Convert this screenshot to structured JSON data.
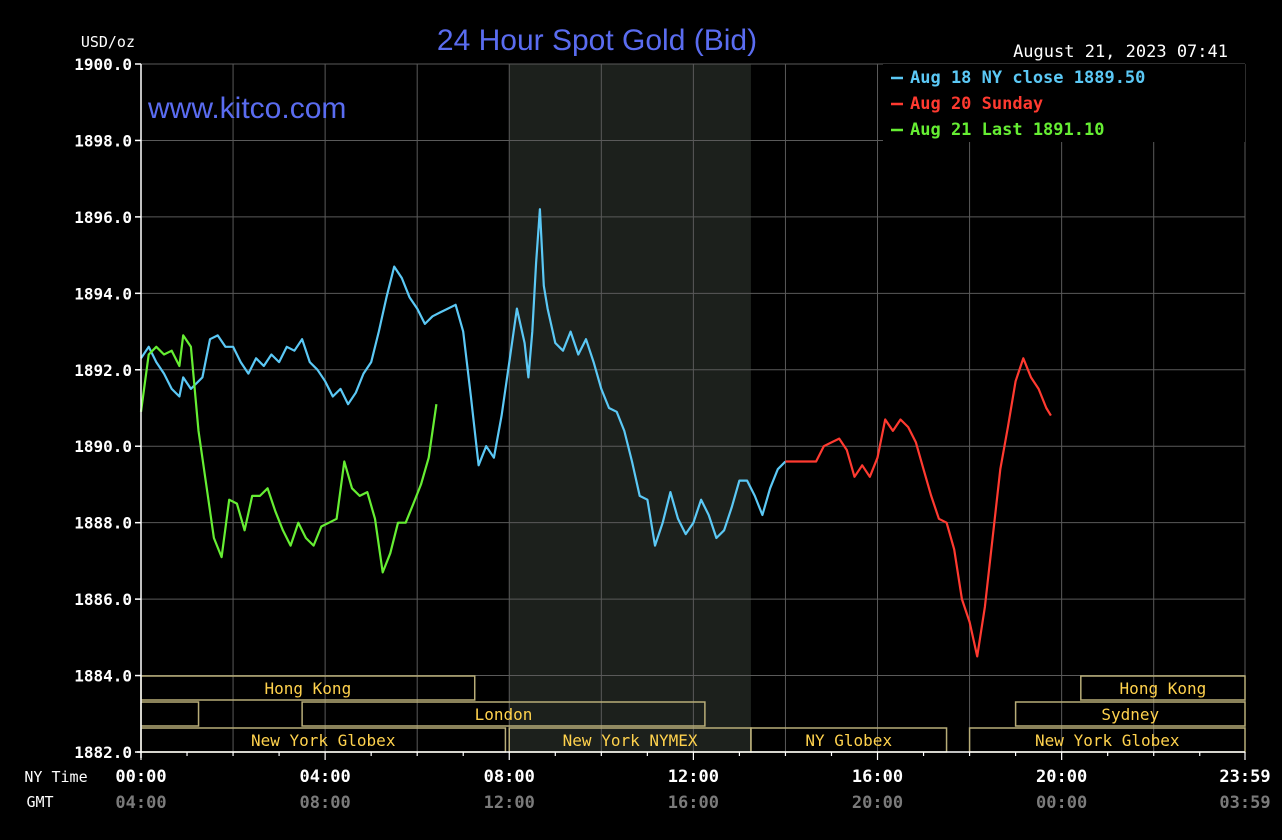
{
  "chart_data": {
    "type": "line",
    "title": "24 Hour Spot Gold (Bid)",
    "website": "www.kitco.com",
    "timestamp": "August 21, 2023 07:41",
    "ylabel": "USD/oz",
    "ylim": [
      1882.0,
      1900.0
    ],
    "ytick_values": [
      1882,
      1884,
      1886,
      1888,
      1890,
      1892,
      1894,
      1896,
      1898,
      1900
    ],
    "ytick_labels": [
      "1882.0",
      "1884.0",
      "1886.0",
      "1888.0",
      "1890.0",
      "1892.0",
      "1894.0",
      "1896.0",
      "1898.0",
      "1900.0"
    ],
    "xlim_minutes": [
      0,
      1439
    ],
    "ny_time_label": "NY Time",
    "gmt_label": "GMT",
    "xtick_minutes": [
      0,
      240,
      480,
      720,
      960,
      1200,
      1439
    ],
    "xtick_ny": [
      "00:00",
      "04:00",
      "08:00",
      "12:00",
      "16:00",
      "20:00",
      "23:59"
    ],
    "xtick_gmt": [
      "04:00",
      "08:00",
      "12:00",
      "16:00",
      "20:00",
      "00:00",
      "03:59"
    ],
    "shade_minutes": [
      480,
      795
    ],
    "legend_placement": "top-right",
    "grid": true,
    "colors": {
      "background": "#000000",
      "grid": "#5a5a5a",
      "session_box": "#b8ad78",
      "session_text": "#ffd24d",
      "title": "#5a6cf0",
      "axis_text": "#ffffff"
    },
    "series": [
      {
        "name": "Aug 18 NY close 1889.50",
        "color": "#5bc8f5",
        "points": [
          [
            0,
            1892.3
          ],
          [
            10,
            1892.6
          ],
          [
            20,
            1892.2
          ],
          [
            30,
            1891.9
          ],
          [
            40,
            1891.5
          ],
          [
            50,
            1891.3
          ],
          [
            55,
            1891.8
          ],
          [
            65,
            1891.5
          ],
          [
            80,
            1891.8
          ],
          [
            90,
            1892.8
          ],
          [
            100,
            1892.9
          ],
          [
            110,
            1892.6
          ],
          [
            120,
            1892.6
          ],
          [
            130,
            1892.2
          ],
          [
            140,
            1891.9
          ],
          [
            150,
            1892.3
          ],
          [
            160,
            1892.1
          ],
          [
            170,
            1892.4
          ],
          [
            180,
            1892.2
          ],
          [
            190,
            1892.6
          ],
          [
            200,
            1892.5
          ],
          [
            210,
            1892.8
          ],
          [
            220,
            1892.2
          ],
          [
            230,
            1892.0
          ],
          [
            240,
            1891.7
          ],
          [
            250,
            1891.3
          ],
          [
            260,
            1891.5
          ],
          [
            270,
            1891.1
          ],
          [
            280,
            1891.4
          ],
          [
            290,
            1891.9
          ],
          [
            300,
            1892.2
          ],
          [
            310,
            1893.0
          ],
          [
            320,
            1893.9
          ],
          [
            330,
            1894.7
          ],
          [
            340,
            1894.4
          ],
          [
            350,
            1893.9
          ],
          [
            360,
            1893.6
          ],
          [
            370,
            1893.2
          ],
          [
            380,
            1893.4
          ],
          [
            390,
            1893.5
          ],
          [
            400,
            1893.6
          ],
          [
            410,
            1893.7
          ],
          [
            420,
            1893.0
          ],
          [
            430,
            1891.3
          ],
          [
            440,
            1889.5
          ],
          [
            450,
            1890.0
          ],
          [
            460,
            1889.7
          ],
          [
            470,
            1890.8
          ],
          [
            480,
            1892.2
          ],
          [
            490,
            1893.6
          ],
          [
            500,
            1892.7
          ],
          [
            505,
            1891.8
          ],
          [
            510,
            1893.0
          ],
          [
            515,
            1894.8
          ],
          [
            520,
            1896.2
          ],
          [
            525,
            1894.2
          ],
          [
            530,
            1893.6
          ],
          [
            540,
            1892.7
          ],
          [
            550,
            1892.5
          ],
          [
            560,
            1893.0
          ],
          [
            570,
            1892.4
          ],
          [
            580,
            1892.8
          ],
          [
            590,
            1892.2
          ],
          [
            600,
            1891.5
          ],
          [
            610,
            1891.0
          ],
          [
            620,
            1890.9
          ],
          [
            630,
            1890.4
          ],
          [
            640,
            1889.6
          ],
          [
            650,
            1888.7
          ],
          [
            660,
            1888.6
          ],
          [
            670,
            1887.4
          ],
          [
            680,
            1888.0
          ],
          [
            690,
            1888.8
          ],
          [
            700,
            1888.1
          ],
          [
            710,
            1887.7
          ],
          [
            720,
            1888.0
          ],
          [
            730,
            1888.6
          ],
          [
            740,
            1888.2
          ],
          [
            750,
            1887.6
          ],
          [
            760,
            1887.8
          ],
          [
            770,
            1888.4
          ],
          [
            780,
            1889.1
          ],
          [
            790,
            1889.1
          ],
          [
            800,
            1888.7
          ],
          [
            810,
            1888.2
          ],
          [
            820,
            1888.9
          ],
          [
            830,
            1889.4
          ],
          [
            840,
            1889.6
          ]
        ]
      },
      {
        "name": "Aug 20 Sunday",
        "color": "#ff3a30",
        "points": [
          [
            840,
            1889.6
          ],
          [
            880,
            1889.6
          ],
          [
            890,
            1890.0
          ],
          [
            900,
            1890.1
          ],
          [
            910,
            1890.2
          ],
          [
            920,
            1889.9
          ],
          [
            930,
            1889.2
          ],
          [
            940,
            1889.5
          ],
          [
            950,
            1889.2
          ],
          [
            960,
            1889.7
          ],
          [
            970,
            1890.7
          ],
          [
            980,
            1890.4
          ],
          [
            990,
            1890.7
          ],
          [
            1000,
            1890.5
          ],
          [
            1010,
            1890.1
          ],
          [
            1020,
            1889.4
          ],
          [
            1030,
            1888.7
          ],
          [
            1040,
            1888.1
          ],
          [
            1050,
            1888.0
          ],
          [
            1060,
            1887.3
          ],
          [
            1070,
            1886.0
          ],
          [
            1080,
            1885.4
          ],
          [
            1090,
            1884.5
          ],
          [
            1100,
            1885.8
          ],
          [
            1110,
            1887.6
          ],
          [
            1120,
            1889.4
          ],
          [
            1130,
            1890.5
          ],
          [
            1140,
            1891.7
          ],
          [
            1150,
            1892.3
          ],
          [
            1160,
            1891.8
          ],
          [
            1170,
            1891.5
          ],
          [
            1180,
            1891.0
          ],
          [
            1186,
            1890.8
          ]
        ]
      },
      {
        "name": "Aug 21 Last 1891.10",
        "color": "#66ee33",
        "points": [
          [
            0,
            1890.9
          ],
          [
            10,
            1892.4
          ],
          [
            20,
            1892.6
          ],
          [
            30,
            1892.4
          ],
          [
            40,
            1892.5
          ],
          [
            50,
            1892.1
          ],
          [
            55,
            1892.9
          ],
          [
            65,
            1892.6
          ],
          [
            75,
            1890.4
          ],
          [
            85,
            1889.0
          ],
          [
            95,
            1887.6
          ],
          [
            105,
            1887.1
          ],
          [
            115,
            1888.6
          ],
          [
            125,
            1888.5
          ],
          [
            135,
            1887.8
          ],
          [
            145,
            1888.7
          ],
          [
            155,
            1888.7
          ],
          [
            165,
            1888.9
          ],
          [
            175,
            1888.3
          ],
          [
            185,
            1887.8
          ],
          [
            195,
            1887.4
          ],
          [
            205,
            1888.0
          ],
          [
            215,
            1887.6
          ],
          [
            225,
            1887.4
          ],
          [
            235,
            1887.9
          ],
          [
            245,
            1888.0
          ],
          [
            255,
            1888.1
          ],
          [
            265,
            1889.6
          ],
          [
            275,
            1888.9
          ],
          [
            285,
            1888.7
          ],
          [
            295,
            1888.8
          ],
          [
            305,
            1888.1
          ],
          [
            315,
            1886.7
          ],
          [
            325,
            1887.2
          ],
          [
            335,
            1888.0
          ],
          [
            345,
            1888.0
          ],
          [
            355,
            1888.5
          ],
          [
            365,
            1889.0
          ],
          [
            375,
            1889.7
          ],
          [
            385,
            1891.1
          ]
        ]
      }
    ],
    "sessions": [
      {
        "label": "Hong Kong",
        "start": 0,
        "end": 435,
        "row": 0
      },
      {
        "label": "",
        "start": 0,
        "end": 75,
        "row": 1
      },
      {
        "label": "London",
        "start": 210,
        "end": 735,
        "row": 1
      },
      {
        "label": "New York Globex",
        "start": 0,
        "end": 475,
        "row": 2
      },
      {
        "label": "New York NYMEX",
        "start": 480,
        "end": 795,
        "row": 2
      },
      {
        "label": "NY Globex",
        "start": 795,
        "end": 1050,
        "row": 2
      },
      {
        "label": "Hong Kong",
        "start": 1225,
        "end": 1439,
        "row": 0
      },
      {
        "label": "Sydney",
        "start": 1140,
        "end": 1439,
        "row": 1
      },
      {
        "label": "New York Globex",
        "start": 1080,
        "end": 1439,
        "row": 2
      }
    ]
  }
}
